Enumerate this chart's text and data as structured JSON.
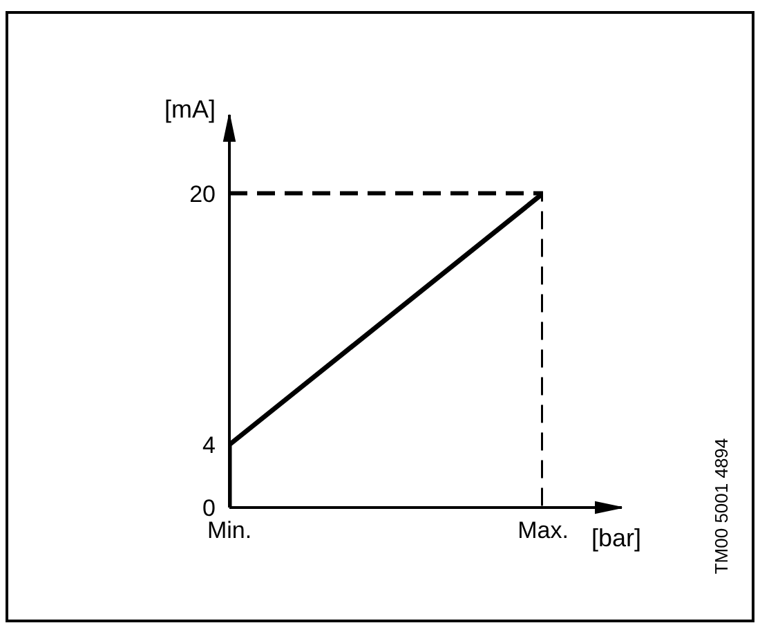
{
  "chart_data": {
    "type": "line",
    "xlabel": "[bar]",
    "ylabel": "[mA]",
    "annotations": [
      "TM00 5001 4894"
    ],
    "categories": [
      "Min.",
      "Max."
    ],
    "ylim": [
      0,
      25
    ],
    "yticks": [
      0,
      4,
      20
    ],
    "marker": "none",
    "series": [
      {
        "x": [
          "Min.",
          "Min.",
          "Max."
        ],
        "values": [
          0,
          4,
          20
        ],
        "color": "#000000",
        "line_style": "solid"
      },
      {
        "x": [
          "Min.",
          "Max.",
          "Max."
        ],
        "values": [
          20,
          20,
          0
        ],
        "color": "#000000",
        "line_style": "dashed"
      }
    ]
  }
}
